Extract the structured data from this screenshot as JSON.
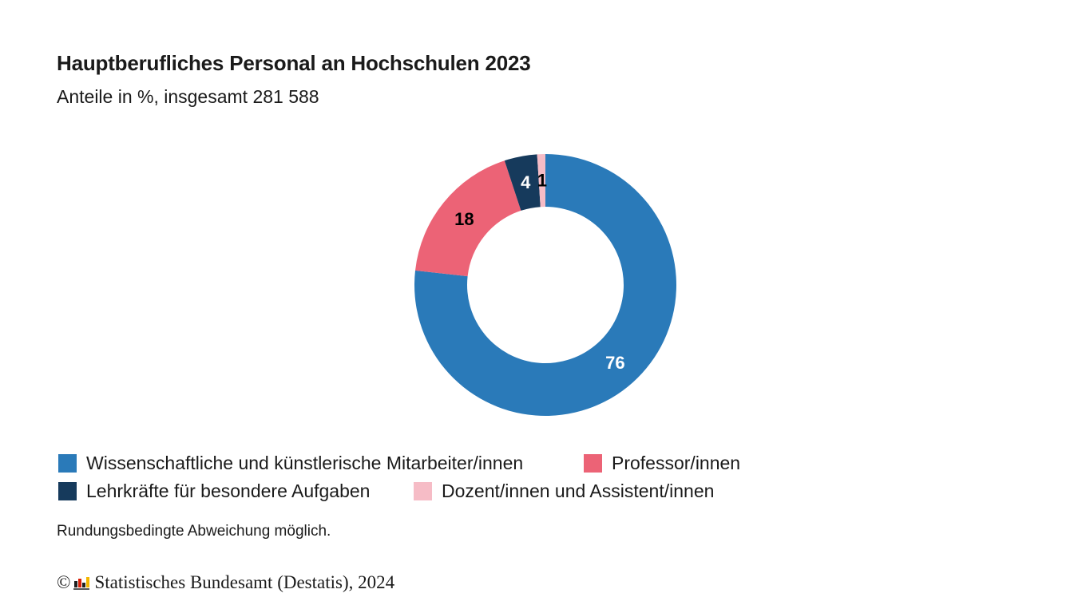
{
  "chart_data": {
    "type": "pie",
    "variant": "donut",
    "title": "Hauptberufliches Personal an Hochschulen 2023",
    "subtitle": "Anteile in %, insgesamt 281 588",
    "slices": [
      {
        "label": "Wissenschaftliche und künstlerische Mitarbeiter/innen",
        "value": 76,
        "display": "76",
        "color": "#2a7ab9",
        "label_color": "#ffffff"
      },
      {
        "label": "Professor/innen",
        "value": 18,
        "display": "18",
        "color": "#ec6376",
        "label_color": "#000000"
      },
      {
        "label": "Lehrkräfte für besondere Aufgaben",
        "value": 4,
        "display": "4",
        "color": "#163a5c",
        "label_color": "#ffffff"
      },
      {
        "label": "Dozent/innen und Assistent/innen",
        "value": 1,
        "display": "1",
        "color": "#f6bcc6",
        "label_color": "#000000"
      }
    ],
    "legend_position": "bottom-left",
    "note": "Rundungsbedingte Abweichung möglich."
  },
  "footer": {
    "copyright": "©",
    "logo": "destatis-logo-icon",
    "source": "Statistisches Bundesamt (Destatis), 2024"
  }
}
